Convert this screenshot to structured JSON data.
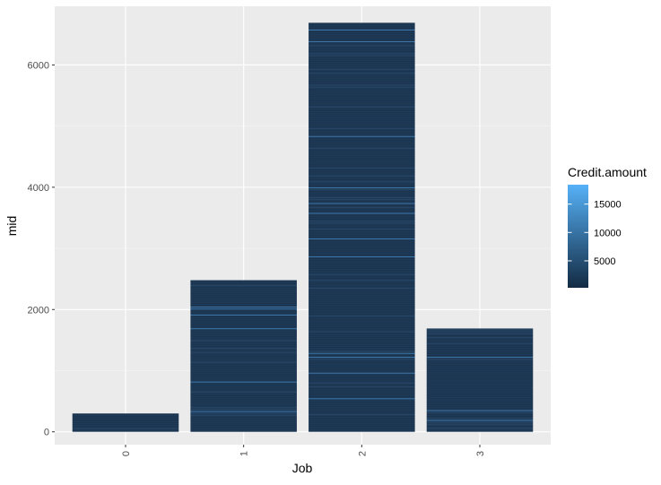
{
  "chart_data": {
    "type": "bar",
    "categories": [
      "0",
      "1",
      "2",
      "3"
    ],
    "values": [
      300,
      2480,
      6690,
      1690
    ],
    "xlabel": "Job",
    "ylabel": "mid",
    "ylim": [
      -210,
      6960
    ],
    "y_ticks": [
      0,
      2000,
      4000,
      6000
    ],
    "y_tick_labels": [
      "0",
      "2000",
      "4000",
      "6000"
    ],
    "x_tick_rotation": "vertical",
    "grid": true,
    "legend": {
      "title": "Credit.amount",
      "type": "colorbar",
      "position": "right",
      "range": [
        250,
        18424
      ],
      "ticks": [
        5000,
        10000,
        15000
      ],
      "tick_labels": [
        "5000",
        "10000",
        "15000"
      ],
      "color_low": "#132b43",
      "color_high": "#56b1f7"
    },
    "colors": {
      "panel_background": "#ebebeb",
      "grid_major": "#ffffff",
      "grid_minor": "#f5f5f5",
      "bar_fill": "#1f3a56",
      "bar_stripe_dark": "#16304a",
      "bar_stripe_light": "#4a90cc"
    }
  }
}
